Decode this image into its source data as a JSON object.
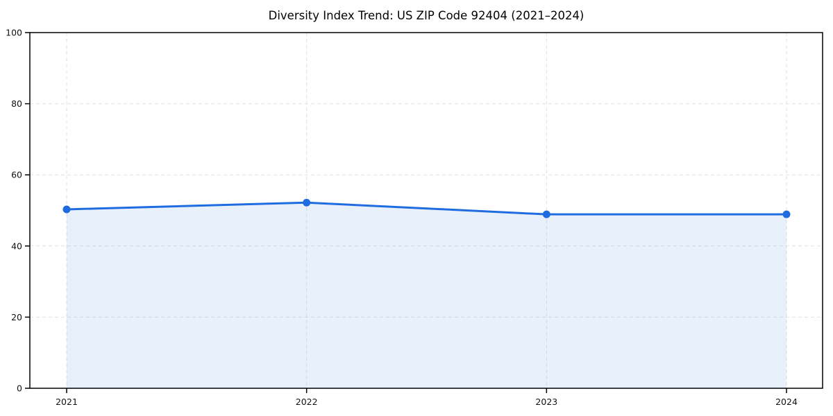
{
  "title": "Diversity Index Trend: US ZIP Code 92404 (2021–2024)",
  "chart_data": {
    "type": "area",
    "title": "Diversity Index Trend: US ZIP Code 92404 (2021–2024)",
    "categories": [
      "2021",
      "2022",
      "2023",
      "2024"
    ],
    "series": [
      {
        "name": "Diversity Index",
        "values": [
          50.3,
          52.2,
          48.9,
          48.9
        ]
      }
    ],
    "xlabel": "",
    "ylabel": "",
    "ylim": [
      0,
      100
    ],
    "yticks": [
      0,
      20,
      40,
      60,
      80,
      100
    ],
    "grid": true,
    "grid_style": "dashed",
    "legend_position": "none",
    "colors": {
      "line": "#1f6ce0",
      "marker": "#1f6ce0",
      "fill": "rgba(31, 108, 224, 0.10)",
      "gridline": "#e2e2e2",
      "spine": "#000000",
      "tick_label": "#111111"
    }
  }
}
